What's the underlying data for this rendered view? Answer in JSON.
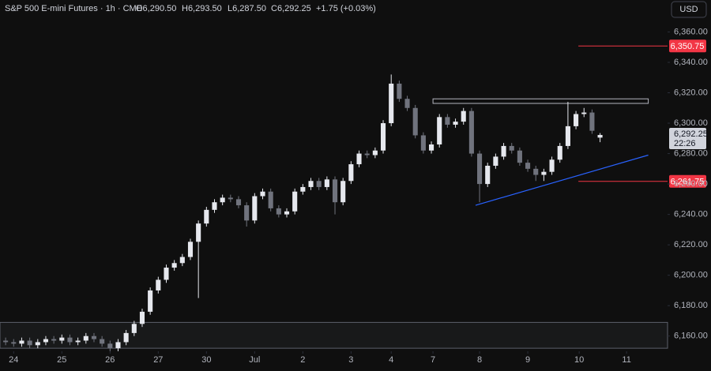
{
  "header": {
    "symbol": "S&P 500 E-mini Futures · 1h · CME",
    "open": "O6,290.50",
    "high": "H6,293.50",
    "low": "L6,287.50",
    "close": "C6,292.25",
    "change": "+1.75 (+0.03%)",
    "currency": "USD"
  },
  "chart_data": {
    "type": "candlestick",
    "x": [
      -1,
      0,
      1,
      2,
      3,
      4,
      5,
      6,
      7,
      8,
      9,
      10,
      11,
      12,
      13,
      14,
      15,
      16,
      17,
      18,
      19,
      20,
      21,
      22,
      23,
      24,
      25,
      26,
      27,
      28,
      29,
      30,
      31,
      32,
      33,
      34,
      35,
      36,
      37,
      38,
      39,
      40,
      41,
      42,
      43,
      44,
      45,
      46,
      47,
      48,
      49,
      50,
      51,
      52,
      53,
      54,
      55,
      56,
      57,
      58,
      59,
      60,
      61,
      62,
      63,
      64,
      65,
      66,
      67,
      68,
      69,
      70,
      71,
      72,
      73
    ],
    "open": [
      6157,
      6156,
      6155,
      6157,
      6154,
      6156,
      6158,
      6157,
      6159,
      6156,
      6157,
      6160,
      6158,
      6155,
      6152,
      6156,
      6162,
      6168,
      6176,
      6190,
      6197,
      6205,
      6208,
      6212,
      6222,
      6234,
      6243,
      6248,
      6251,
      6250,
      6246,
      6236,
      6252,
      6255,
      6244,
      6240,
      6242,
      6255,
      6258,
      6262,
      6258,
      6263,
      6248,
      6262,
      6273,
      6280,
      6279,
      6282,
      6300,
      6326,
      6316,
      6310,
      6292,
      6282,
      6286,
      6304,
      6299,
      6301,
      6308,
      6280,
      6260,
      6272,
      6278,
      6285,
      6282,
      6274,
      6270,
      6266,
      6268,
      6276,
      6285,
      6298,
      6306,
      6307,
      6290.5
    ],
    "high": [
      6159,
      6158,
      6159,
      6159,
      6158,
      6160,
      6160,
      6161,
      6161,
      6159,
      6162,
      6162,
      6160,
      6157,
      6158,
      6164,
      6170,
      6178,
      6192,
      6199,
      6207,
      6210,
      6214,
      6224,
      6236,
      6245,
      6250,
      6253,
      6253,
      6252,
      6248,
      6254,
      6257,
      6257,
      6246,
      6244,
      6257,
      6260,
      6264,
      6264,
      6265,
      6265,
      6264,
      6275,
      6282,
      6282,
      6284,
      6302,
      6332,
      6328,
      6318,
      6312,
      6294,
      6288,
      6306,
      6306,
      6303,
      6310,
      6310,
      6282,
      6274,
      6280,
      6287,
      6287,
      6284,
      6276,
      6272,
      6270,
      6278,
      6287,
      6314,
      6308,
      6310,
      6309,
      6293.5
    ],
    "low": [
      6154,
      6153,
      6153,
      6152,
      6152,
      6154,
      6155,
      6155,
      6154,
      6154,
      6155,
      6156,
      6153,
      6150,
      6150,
      6154,
      6160,
      6166,
      6174,
      6188,
      6195,
      6203,
      6206,
      6210,
      6185,
      6232,
      6241,
      6246,
      6248,
      6244,
      6232,
      6234,
      6250,
      6242,
      6238,
      6238,
      6240,
      6253,
      6256,
      6256,
      6256,
      6240,
      6246,
      6260,
      6271,
      6277,
      6277,
      6280,
      6298,
      6314,
      6308,
      6290,
      6280,
      6280,
      6284,
      6297,
      6297,
      6299,
      6278,
      6248,
      6258,
      6270,
      6276,
      6280,
      6272,
      6268,
      6262,
      6262,
      6266,
      6274,
      6283,
      6296,
      6304,
      6293,
      6287.5
    ],
    "close": [
      6156,
      6155,
      6157,
      6154,
      6156,
      6158,
      6157,
      6159,
      6156,
      6157,
      6160,
      6158,
      6155,
      6152,
      6156,
      6162,
      6168,
      6176,
      6190,
      6197,
      6205,
      6208,
      6212,
      6222,
      6234,
      6243,
      6248,
      6251,
      6250,
      6246,
      6236,
      6252,
      6255,
      6244,
      6240,
      6242,
      6255,
      6258,
      6262,
      6258,
      6263,
      6248,
      6262,
      6273,
      6280,
      6279,
      6282,
      6300,
      6326,
      6316,
      6310,
      6292,
      6282,
      6286,
      6304,
      6299,
      6301,
      6308,
      6280,
      6260,
      6272,
      6278,
      6285,
      6282,
      6274,
      6270,
      6266,
      6268,
      6276,
      6285,
      6298,
      6306,
      6307,
      6295,
      6292.25
    ],
    "up_color": "#e6e8ee",
    "down_color": "#70737d",
    "xlim": [
      -1.7,
      81.4
    ],
    "xticks": [
      {
        "value": 0,
        "label": "24"
      },
      {
        "value": 6,
        "label": "25"
      },
      {
        "value": 12,
        "label": "26"
      },
      {
        "value": 18,
        "label": "27"
      },
      {
        "value": 24,
        "label": "30"
      },
      {
        "value": 30,
        "label": "Jul"
      },
      {
        "value": 36,
        "label": "2"
      },
      {
        "value": 42,
        "label": "3"
      },
      {
        "value": 47,
        "label": "4"
      },
      {
        "value": 52.2,
        "label": "7"
      },
      {
        "value": 58,
        "label": "8"
      },
      {
        "value": 64,
        "label": "9"
      },
      {
        "value": 70.4,
        "label": "10"
      },
      {
        "value": 76.3,
        "label": "11"
      }
    ],
    "ylim": [
      6150,
      6381
    ],
    "yticks": [
      {
        "value": 6160,
        "label": "6,160.00"
      },
      {
        "value": 6180,
        "label": "6,180.00"
      },
      {
        "value": 6200,
        "label": "6,200.00"
      },
      {
        "value": 6220,
        "label": "6,220.00"
      },
      {
        "value": 6240,
        "label": "6,240.00"
      },
      {
        "value": 6260,
        "label": "6,260.00"
      },
      {
        "value": 6280,
        "label": "6,280.00"
      },
      {
        "value": 6300,
        "label": "6,300.00"
      },
      {
        "value": 6320,
        "label": "6,320.00"
      },
      {
        "value": 6340,
        "label": "6,340.00"
      },
      {
        "value": 6360,
        "label": "6,360.00"
      }
    ],
    "levels": [
      {
        "value": 6350.75,
        "label": "6,350.75",
        "from": 70.3,
        "color": "#f23645"
      },
      {
        "value": 6261.75,
        "label": "6,261.75",
        "from": 70.3,
        "color": "#f23645"
      }
    ],
    "resistance_zone": {
      "x": [
        52.2,
        79
      ],
      "y": [
        6313,
        6316
      ],
      "color": "#b2b5be"
    },
    "support_zone": {
      "y": [
        6152,
        6169
      ],
      "color": "#5d606b"
    },
    "trendline": {
      "x": [
        57.5,
        79
      ],
      "y": [
        6246,
        6279
      ],
      "color": "#2962ff"
    },
    "last_price": {
      "value": 6292.25,
      "label": "6,292.25",
      "countdown": "22:26"
    }
  }
}
